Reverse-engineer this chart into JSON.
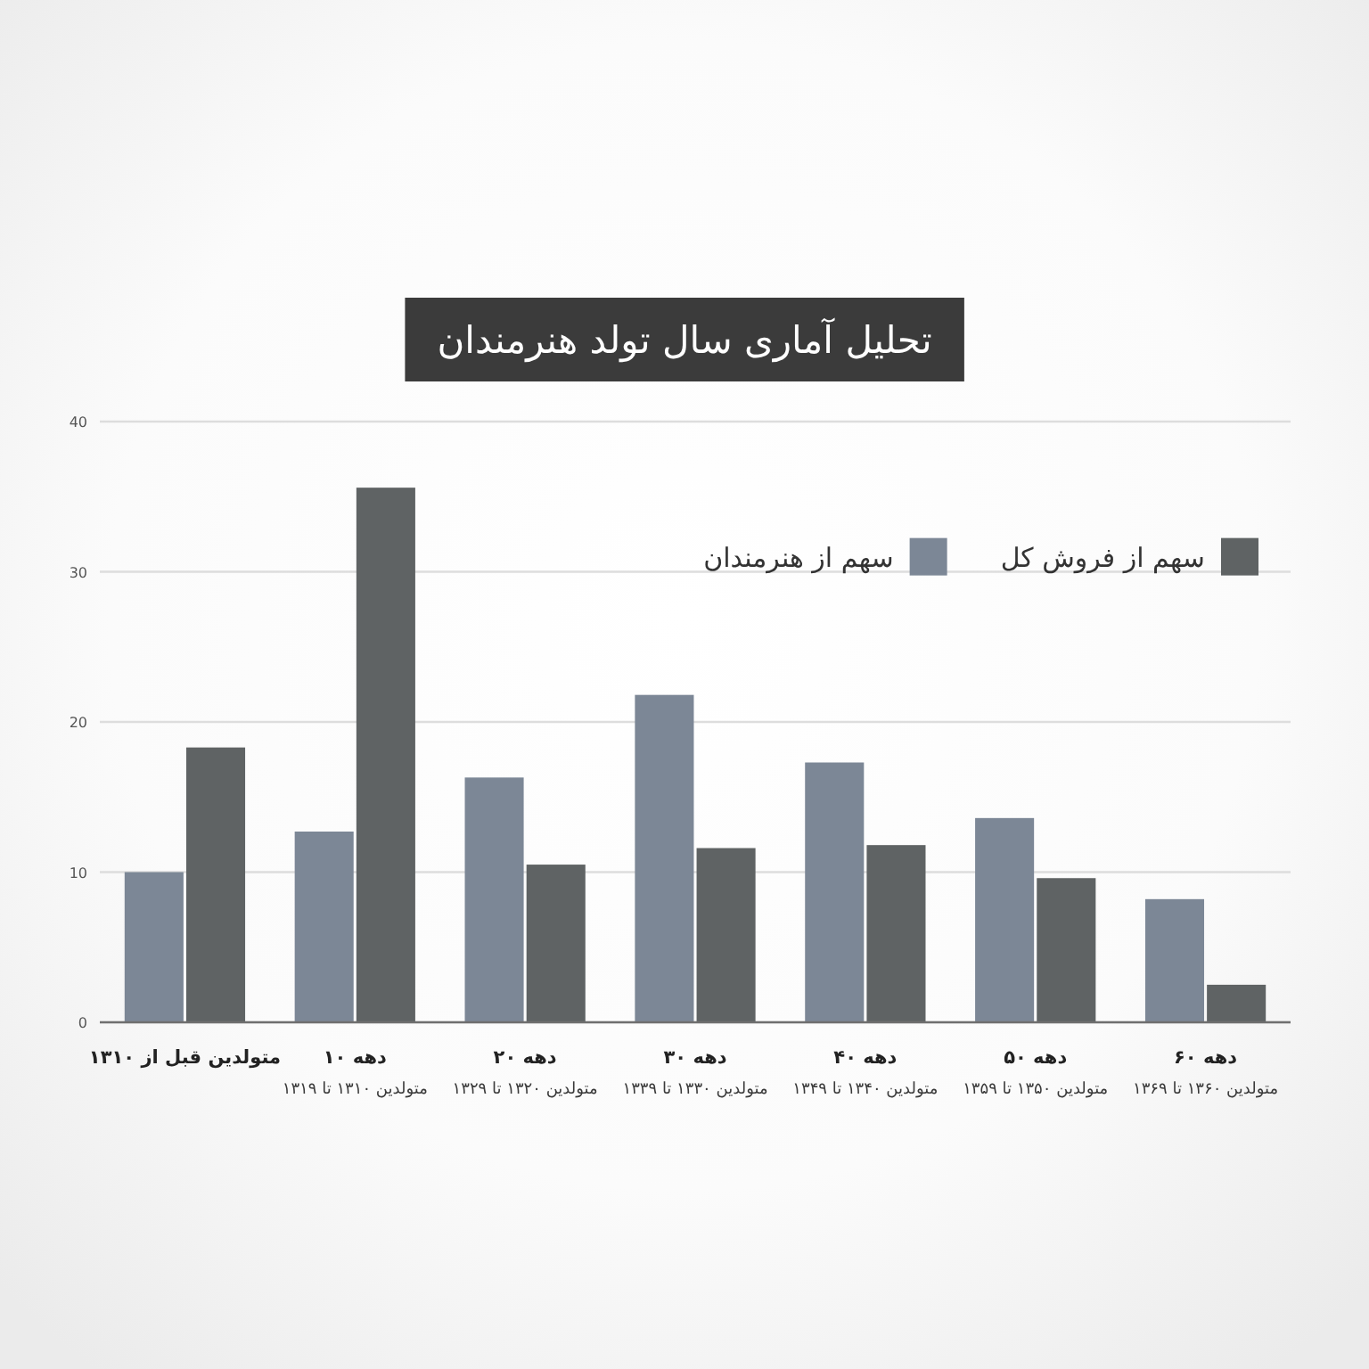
{
  "chart_data": {
    "type": "bar",
    "title": "تحلیل آماری سال تولد هنرمندان",
    "categories": [
      "متولدین قبل از ۱۳۱۰",
      "دهه ۱۰\nمتولدین ۱۳۱۰ تا ۱۳۱۹",
      "دهه ۲۰\nمتولدین ۱۳۲۰ تا ۱۳۲۹",
      "دهه ۳۰\nمتولدین ۱۳۳۰ تا ۱۳۳۹",
      "دهه ۴۰\nمتولدین ۱۳۴۰ تا ۱۳۴۹",
      "دهه ۵۰\nمتولدین ۱۳۵۰ تا ۱۳۵۹",
      "دهه ۶۰\nمتولدین ۱۳۶۰ تا ۱۳۶۹"
    ],
    "series": [
      {
        "name": "سهم از هنرمندان",
        "color": "#7c8796",
        "values": [
          10,
          12.7,
          16.3,
          21.8,
          17.3,
          13.6,
          8.2
        ]
      },
      {
        "name": "سهم از فروش کل",
        "color": "#5f6364",
        "values": [
          18.3,
          35.6,
          10.5,
          11.6,
          11.8,
          9.6,
          2.5
        ]
      }
    ],
    "ylim": [
      0,
      40
    ],
    "yticks": [
      0,
      10,
      20,
      30,
      40
    ],
    "grid": "y",
    "legend": "top right"
  }
}
